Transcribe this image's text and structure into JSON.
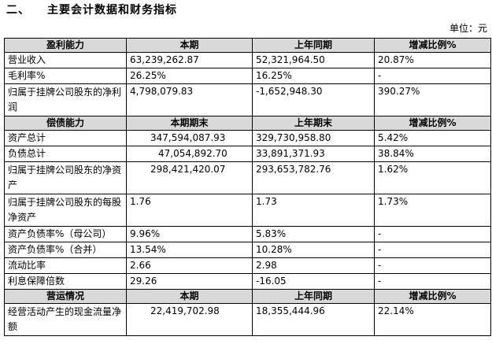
{
  "section": {
    "number": "二、",
    "title": "主要会计数据和财务指标"
  },
  "unit": "单位：元",
  "profit": {
    "headers": [
      "盈利能力",
      "本期",
      "上年同期",
      "增减比例%"
    ],
    "rows": [
      [
        "营业收入",
        "63,239,262.87",
        "52,321,964.50",
        "20.87%"
      ],
      [
        "毛利率%",
        "26.25%",
        "16.25%",
        "-"
      ],
      [
        "归属于挂牌公司股东的净利润",
        "4,798,079.83",
        "-1,652,948.30",
        "390.27%"
      ]
    ]
  },
  "solvency": {
    "headers": [
      "偿债能力",
      "本期期末",
      "上年期末",
      "增减比例%"
    ],
    "rows": [
      [
        "资产总计",
        "347,594,087.93",
        "329,730,958.80",
        "5.42%"
      ],
      [
        "负债总计",
        "47,054,892.70",
        "33,891,371.93",
        "38.84%"
      ],
      [
        "归属于挂牌公司股东的净资产",
        "298,421,420.07",
        "293,653,782.76",
        "1.62%"
      ],
      [
        "归属于挂牌公司股东的每股净资产",
        "1.76",
        "1.73",
        "1.73%"
      ],
      [
        "资产负债率%（母公司）",
        "9.96%",
        "5.83%",
        "-"
      ],
      [
        "资产负债率%（合并）",
        "13.54%",
        "10.28%",
        "-"
      ],
      [
        "流动比率",
        "2.66",
        "2.98",
        "-"
      ],
      [
        "利息保障倍数",
        "29.26",
        "-16.05",
        "-"
      ]
    ]
  },
  "operation": {
    "headers": [
      "营运情况",
      "本期",
      "上年同期",
      "增减比例%"
    ],
    "rows": [
      [
        "经营活动产生的现金流量净额",
        "22,419,702.98",
        "18,355,444.96",
        "22.14%"
      ]
    ]
  }
}
